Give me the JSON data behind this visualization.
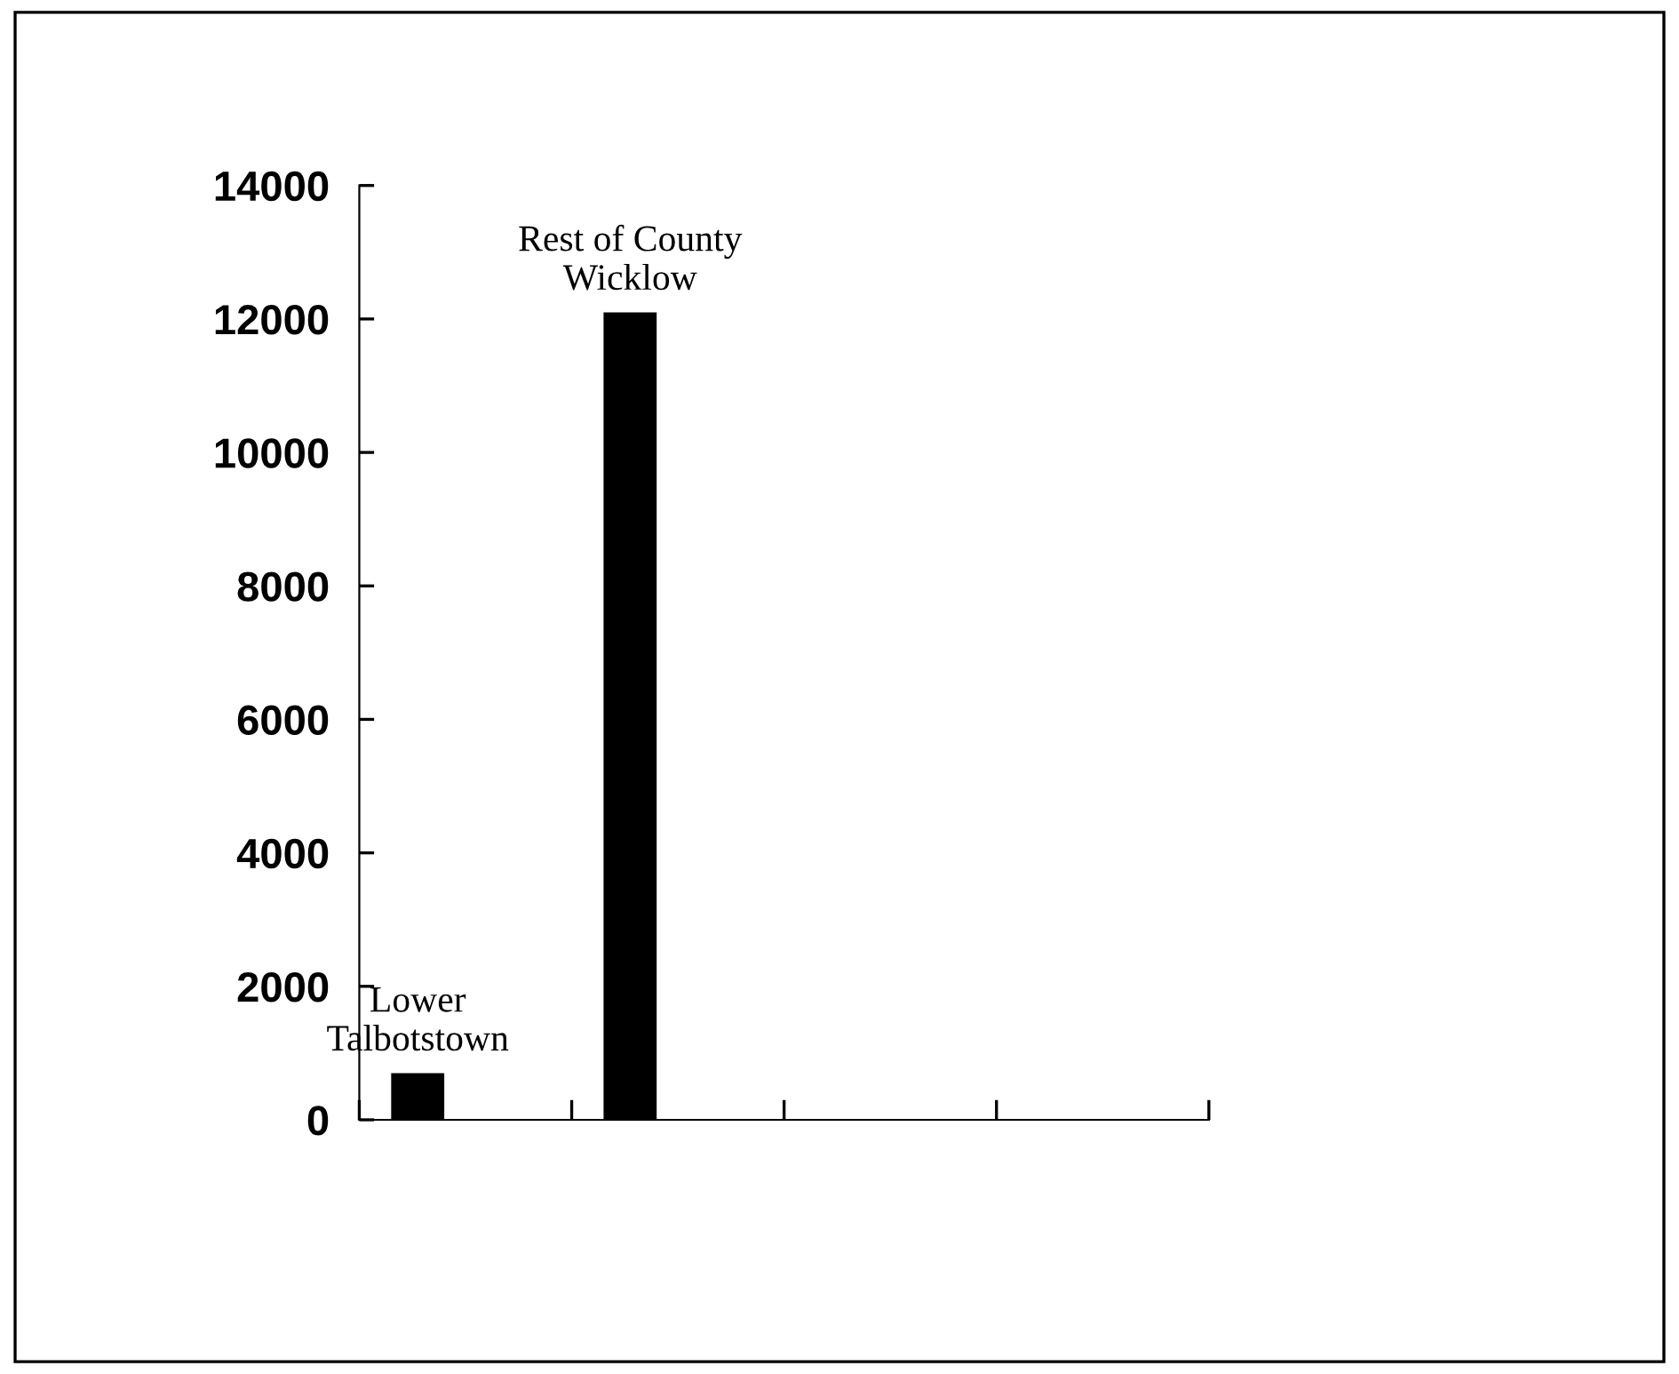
{
  "chart_data": {
    "type": "bar",
    "categories": [
      "Lower\nTalbotstown",
      "Rest of County\nWicklow",
      null,
      null
    ],
    "values": [
      700,
      12100,
      null,
      null
    ],
    "color": "#000000",
    "ylim": [
      0,
      14000
    ],
    "yticks": [
      0,
      2000,
      4000,
      6000,
      8000,
      10000,
      12000,
      14000
    ],
    "grid": false,
    "legend": false
  }
}
